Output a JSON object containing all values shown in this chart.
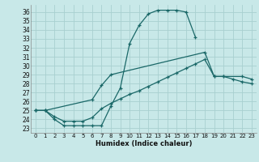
{
  "xlabel": "Humidex (Indice chaleur)",
  "bg_color": "#c8e8e8",
  "grid_color": "#a8d0d0",
  "line_color": "#1a6868",
  "xlim": [
    -0.5,
    23.5
  ],
  "ylim": [
    22.5,
    36.8
  ],
  "yticks": [
    23,
    24,
    25,
    26,
    27,
    28,
    29,
    30,
    31,
    32,
    33,
    34,
    35,
    36
  ],
  "xticks": [
    0,
    1,
    2,
    3,
    4,
    5,
    6,
    7,
    8,
    9,
    10,
    11,
    12,
    13,
    14,
    15,
    16,
    17,
    18,
    19,
    20,
    21,
    22,
    23
  ],
  "curve1_x": [
    0,
    1,
    2,
    3,
    4,
    5,
    6,
    7,
    8,
    9,
    10,
    11,
    12,
    13,
    14,
    15,
    16,
    17
  ],
  "curve1_y": [
    25.0,
    25.0,
    24.0,
    23.3,
    23.3,
    23.3,
    23.3,
    23.3,
    25.5,
    27.5,
    32.5,
    34.5,
    35.8,
    36.2,
    36.2,
    36.2,
    36.0,
    33.2
  ],
  "curve2_x": [
    0,
    1,
    6,
    7,
    8,
    18,
    19,
    20,
    22,
    23
  ],
  "curve2_y": [
    25.0,
    25.0,
    26.2,
    27.8,
    29.0,
    31.5,
    28.8,
    28.8,
    28.8,
    28.5
  ],
  "curve3_x": [
    0,
    1,
    2,
    3,
    4,
    5,
    6,
    7,
    8,
    9,
    10,
    11,
    12,
    13,
    14,
    15,
    16,
    17,
    18,
    19,
    20,
    21,
    22,
    23
  ],
  "curve3_y": [
    25.0,
    25.0,
    24.3,
    23.8,
    23.8,
    23.8,
    24.2,
    25.2,
    25.8,
    26.3,
    26.8,
    27.2,
    27.7,
    28.2,
    28.7,
    29.2,
    29.7,
    30.2,
    30.7,
    28.8,
    28.8,
    28.5,
    28.2,
    28.0
  ]
}
